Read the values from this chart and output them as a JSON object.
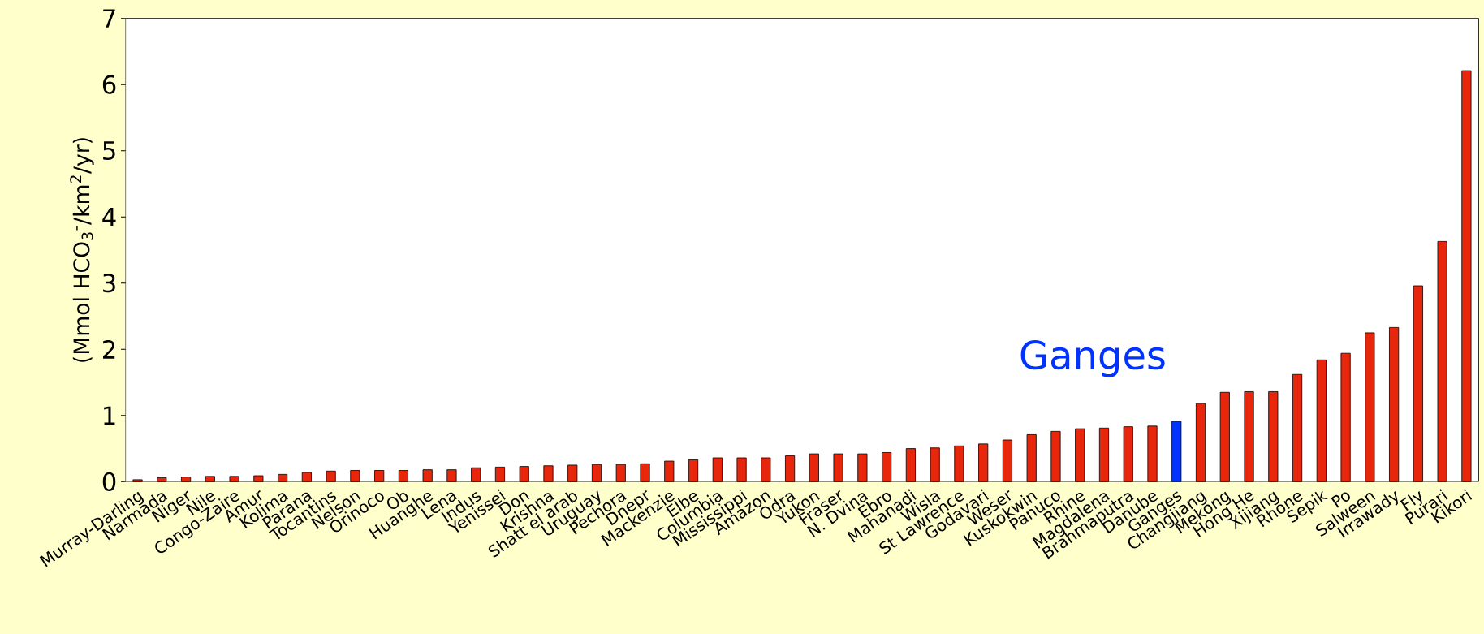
{
  "chart_data": {
    "type": "bar",
    "ylabel": "(Mmol HCO$_{3}$$^{-}$/km$^{2}$/yr)",
    "categories": [
      "Murray-Darling",
      "Narmada",
      "Niger",
      "Nile",
      "Congo-Zaire",
      "Amur",
      "Kolima",
      "Parana",
      "Tocantins",
      "Nelson",
      "Orinoco",
      "Ob",
      "Huanghe",
      "Lena",
      "Indus",
      "Yenissei",
      "Don",
      "Krishna",
      "Shatt el arab",
      "Uruguay",
      "Pechora",
      "Dnepr",
      "Mackenzie",
      "Elbe",
      "Columbia",
      "Mississippi",
      "Amazon",
      "Odra",
      "Yukon",
      "Fraser",
      "N. Dvina",
      "Ebro",
      "Mahanadi",
      "Wisla",
      "St Lawrence",
      "Godavari",
      "Weser",
      "Kuskokwin",
      "Panuco",
      "Rhine",
      "Magdalena",
      "Brahmaputra",
      "Danube",
      "Ganges",
      "Changjiang",
      "Mekong",
      "Hong He",
      "Xijiang",
      "Rhone",
      "Sepik",
      "Po",
      "Salween",
      "Irrawady",
      "Fly",
      "Purari",
      "Kikori"
    ],
    "values": [
      0.03,
      0.06,
      0.07,
      0.08,
      0.08,
      0.09,
      0.11,
      0.14,
      0.16,
      0.17,
      0.17,
      0.17,
      0.18,
      0.18,
      0.21,
      0.22,
      0.23,
      0.24,
      0.25,
      0.26,
      0.26,
      0.27,
      0.31,
      0.33,
      0.36,
      0.36,
      0.36,
      0.39,
      0.42,
      0.42,
      0.42,
      0.44,
      0.5,
      0.51,
      0.54,
      0.57,
      0.63,
      0.71,
      0.76,
      0.8,
      0.81,
      0.83,
      0.84,
      0.91,
      1.18,
      1.35,
      1.36,
      1.36,
      1.62,
      1.84,
      1.94,
      2.25,
      2.33,
      2.96,
      3.63,
      6.21
    ],
    "colors": [
      "#e8260c",
      "#e8260c",
      "#e8260c",
      "#e8260c",
      "#e8260c",
      "#e8260c",
      "#e8260c",
      "#e8260c",
      "#e8260c",
      "#e8260c",
      "#e8260c",
      "#e8260c",
      "#e8260c",
      "#e8260c",
      "#e8260c",
      "#e8260c",
      "#e8260c",
      "#e8260c",
      "#e8260c",
      "#e8260c",
      "#e8260c",
      "#e8260c",
      "#e8260c",
      "#e8260c",
      "#e8260c",
      "#e8260c",
      "#e8260c",
      "#e8260c",
      "#e8260c",
      "#e8260c",
      "#e8260c",
      "#e8260c",
      "#e8260c",
      "#e8260c",
      "#e8260c",
      "#e8260c",
      "#e8260c",
      "#e8260c",
      "#e8260c",
      "#e8260c",
      "#e8260c",
      "#e8260c",
      "#e8260c",
      "#0033ff",
      "#e8260c",
      "#e8260c",
      "#e8260c",
      "#e8260c",
      "#e8260c",
      "#e8260c",
      "#e8260c",
      "#e8260c",
      "#e8260c",
      "#e8260c",
      "#e8260c",
      "#e8260c"
    ],
    "ylim": [
      0,
      7
    ],
    "yticks": [
      0,
      1,
      2,
      3,
      4,
      5,
      6,
      7
    ],
    "annotations": [
      "Ganges"
    ]
  }
}
